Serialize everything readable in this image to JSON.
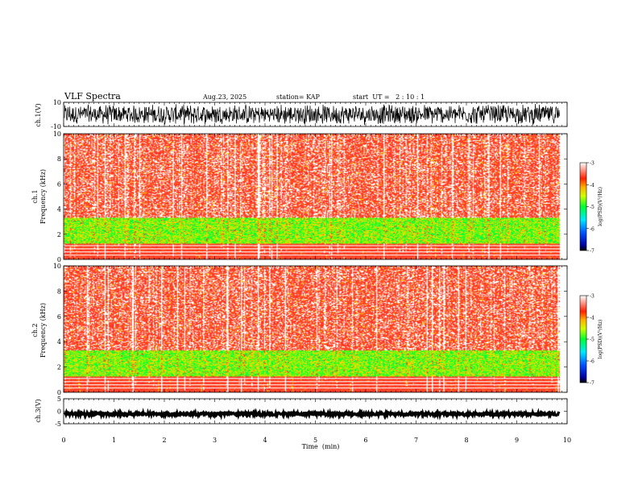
{
  "header": {
    "title": "VLF Spectra",
    "date": "Aug.23, 2025",
    "station": "station= KAP",
    "start": "start  UT =   2 : 10 : 1"
  },
  "chart_data": [
    {
      "name": "ch1-waveform",
      "type": "line",
      "ylabel": "ch.1(V)",
      "ylim": [
        -10,
        10
      ],
      "yticks": [
        "10",
        "-10"
      ]
    },
    {
      "name": "ch1-spectrogram",
      "type": "heatmap",
      "ylabel": "ch.1\nFrequency (kHz)",
      "ylim": [
        0,
        10
      ],
      "yticks": [
        "0",
        "2",
        "4",
        "6",
        "8",
        "10"
      ],
      "colorbar": {
        "label": "log(PSD)(V²/Hz)",
        "ticks": [
          "-3",
          "-4",
          "-5",
          "-6",
          "-7"
        ],
        "range": [
          -7,
          -3
        ]
      }
    },
    {
      "name": "ch2-spectrogram",
      "type": "heatmap",
      "ylabel": "ch.2\nFrequency (kHz)",
      "ylim": [
        0,
        10
      ],
      "yticks": [
        "0",
        "2",
        "4",
        "6",
        "8",
        "10"
      ],
      "colorbar": {
        "label": "log(PSD)(V²/Hz)",
        "ticks": [
          "-3",
          "-4",
          "-5",
          "-6",
          "-7"
        ],
        "range": [
          -7,
          -3
        ]
      }
    },
    {
      "name": "ch3-waveform",
      "type": "line",
      "ylabel": "ch.3(V)",
      "ylim": [
        -5,
        5
      ],
      "yticks": [
        "5",
        "0",
        "-5"
      ]
    }
  ],
  "xaxis": {
    "label": "Time  (min)",
    "range": [
      0,
      10
    ],
    "ticks": [
      "0",
      "1",
      "2",
      "3",
      "4",
      "5",
      "6",
      "7",
      "8",
      "9",
      "10"
    ]
  }
}
